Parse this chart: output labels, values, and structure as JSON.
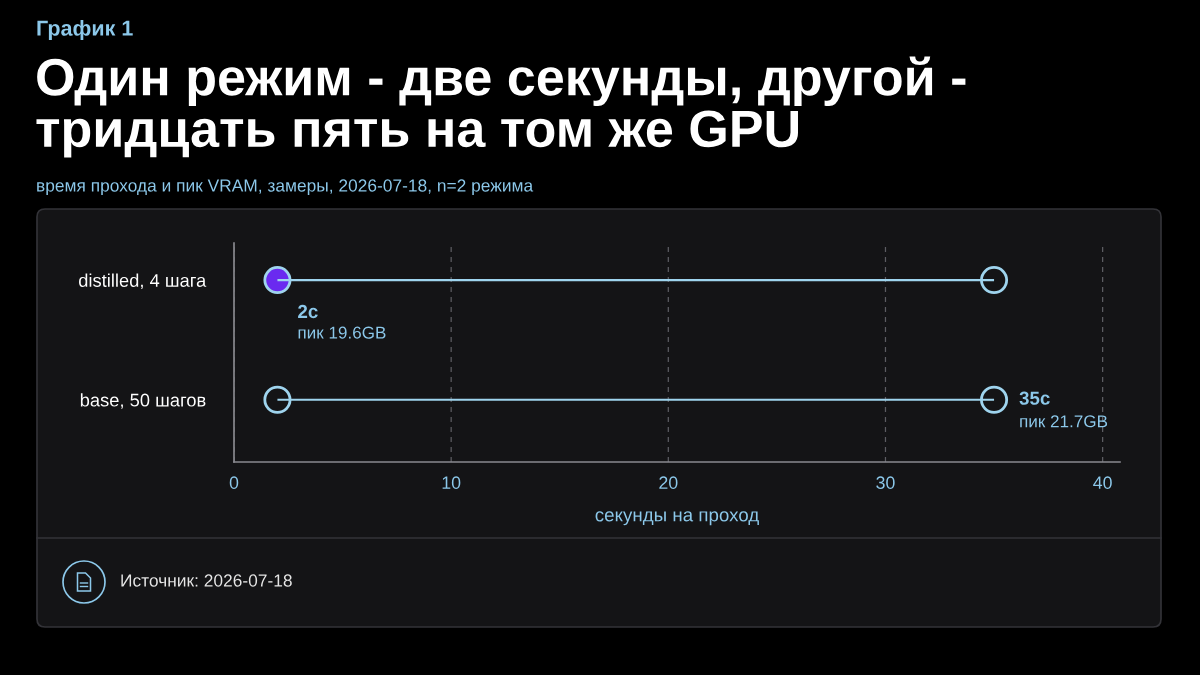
{
  "chart_data": {
    "type": "bar",
    "orientation": "horizontal",
    "title": "Один режим - две секунды, другой -\nтридцать пять на том же GPU",
    "subtitle": "время прохода и пик VRAM, замеры, 2026-07-18, n=2 режима",
    "xlabel": "секунды на проход",
    "categories": [
      "distilled, 4 шага",
      "base, 50 шагов"
    ],
    "series": [
      {
        "base": [
          2,
          2
        ],
        "values": [
          33,
          33
        ],
        "color": "#9fd4ee"
      },
      {
        "type": "scatter",
        "marker": "circle",
        "values": [
          2,
          2
        ],
        "color": "#9fd4ee",
        "colors": [
          "#6a2af0",
          null
        ],
        "value_labels": [
          "2с\nпик 19.6GB",
          null
        ]
      },
      {
        "type": "scatter",
        "marker": "circle",
        "values": [
          35,
          35
        ],
        "color": "#9fd4ee",
        "colors": [
          null,
          null
        ],
        "value_labels": [
          null,
          "35с\nпик 21.7GB"
        ]
      }
    ],
    "xlim": [
      0,
      40.8
    ],
    "xticks": [
      0,
      10,
      20,
      30,
      40
    ],
    "grid": "x",
    "annotations": [
      "График 1",
      "Источник: 2026-07-18"
    ]
  }
}
